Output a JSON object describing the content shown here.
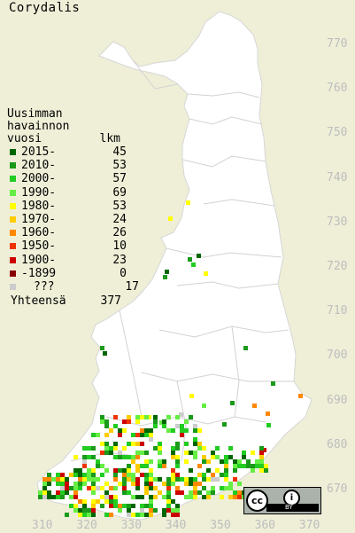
{
  "title": "Corydalis",
  "legend": {
    "heading": [
      "Uusimman",
      "havainnon"
    ],
    "col_left": "vuosi",
    "col_right": "lkm",
    "rows": [
      {
        "label": "2015-",
        "count": "45",
        "color": "#006600"
      },
      {
        "label": "2010-",
        "count": "53",
        "color": "#1a9a1a"
      },
      {
        "label": "2000-",
        "count": "57",
        "color": "#22cc22"
      },
      {
        "label": "1990-",
        "count": "69",
        "color": "#66ee44"
      },
      {
        "label": "1980-",
        "count": "53",
        "color": "#ffff00"
      },
      {
        "label": "1970-",
        "count": "24",
        "color": "#ffcc00"
      },
      {
        "label": "1960-",
        "count": "26",
        "color": "#ff8800"
      },
      {
        "label": "1950-",
        "count": "10",
        "color": "#ee3300"
      },
      {
        "label": "1900-",
        "count": "23",
        "color": "#cc0000"
      },
      {
        "label": "-1899",
        "count": "0",
        "color": "#880000"
      },
      {
        "label": "???",
        "count": "17",
        "color": "#cccccc"
      }
    ],
    "total_label": "Yhteensä",
    "total_count": "377"
  },
  "y_ticks": [
    "770",
    "760",
    "750",
    "740",
    "730",
    "720",
    "710",
    "700",
    "690",
    "680",
    "670"
  ],
  "x_ticks": [
    "310",
    "320",
    "330",
    "340",
    "350",
    "360",
    "370"
  ],
  "colors": {
    "background": "#efefd8",
    "land": "#ffffff",
    "borders": "#cfcfcf",
    "tick_text": "#bdbdbd"
  },
  "license_badge": {
    "cc": "cc",
    "by_icon": "i",
    "by_text": "BY"
  }
}
